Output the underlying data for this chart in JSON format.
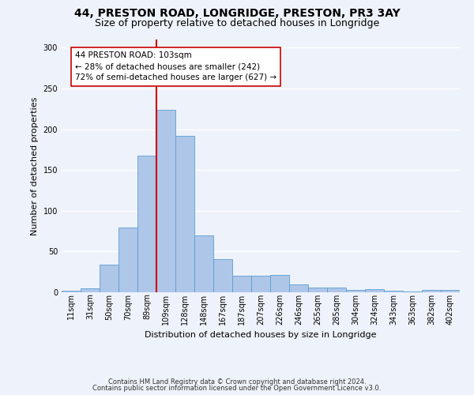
{
  "title1": "44, PRESTON ROAD, LONGRIDGE, PRESTON, PR3 3AY",
  "title2": "Size of property relative to detached houses in Longridge",
  "xlabel": "Distribution of detached houses by size in Longridge",
  "ylabel": "Number of detached properties",
  "bar_labels": [
    "11sqm",
    "31sqm",
    "50sqm",
    "70sqm",
    "89sqm",
    "109sqm",
    "128sqm",
    "148sqm",
    "167sqm",
    "187sqm",
    "207sqm",
    "226sqm",
    "246sqm",
    "265sqm",
    "285sqm",
    "304sqm",
    "324sqm",
    "343sqm",
    "363sqm",
    "382sqm",
    "402sqm"
  ],
  "bar_values": [
    2,
    5,
    34,
    79,
    168,
    224,
    192,
    70,
    41,
    20,
    20,
    21,
    10,
    6,
    6,
    3,
    4,
    2,
    1,
    3,
    3
  ],
  "bar_color": "#aec6e8",
  "bar_edge_color": "#5a9fd4",
  "highlight_index": 5,
  "annotation_text": "44 PRESTON ROAD: 103sqm\n← 28% of detached houses are smaller (242)\n72% of semi-detached houses are larger (627) →",
  "vline_color": "#cc0000",
  "annotation_box_color": "#ffffff",
  "annotation_box_edge": "#cc0000",
  "footer_line1": "Contains HM Land Registry data © Crown copyright and database right 2024.",
  "footer_line2": "Contains public sector information licensed under the Open Government Licence v3.0.",
  "ylim": [
    0,
    310
  ],
  "background_color": "#eef2fa",
  "grid_color": "#ffffff",
  "title1_fontsize": 10,
  "title2_fontsize": 9,
  "xlabel_fontsize": 8,
  "ylabel_fontsize": 8,
  "tick_fontsize": 7,
  "footer_fontsize": 6,
  "annotation_fontsize": 7.5
}
